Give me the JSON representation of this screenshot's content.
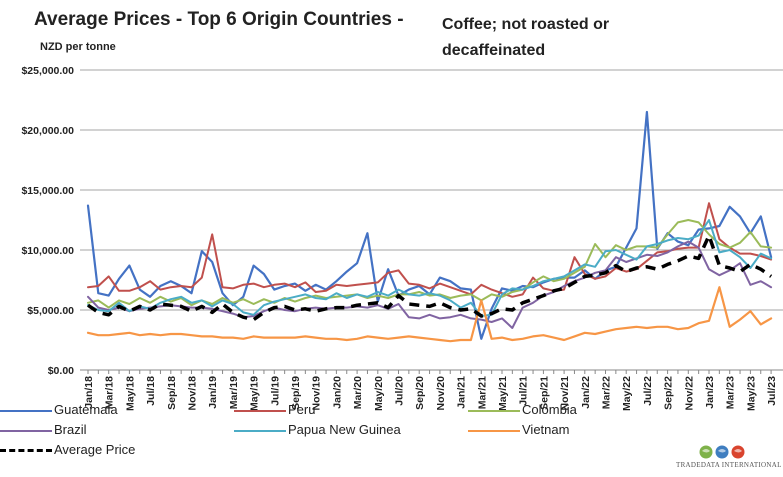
{
  "chart_data": {
    "type": "line",
    "title": "Average Prices - Top 6 Origin Countries -",
    "subtitle": "Coffee; not roasted or decaffeinated",
    "ylabel": "NZD per tonne",
    "ylim": [
      0,
      25000
    ],
    "yticks": [
      "$0.00",
      "$5,000.00",
      "$10,000.00",
      "$15,000.00",
      "$20,000.00",
      "$25,000.00"
    ],
    "ytick_values": [
      0,
      5000,
      10000,
      15000,
      20000,
      25000
    ],
    "categories": [
      "Jan/18",
      "Feb/18",
      "Mar/18",
      "Apr/18",
      "May/18",
      "Jun/18",
      "Jul/18",
      "Aug/18",
      "Sep/18",
      "Oct/18",
      "Nov/18",
      "Dec/18",
      "Jan/19",
      "Feb/19",
      "Mar/19",
      "Apr/19",
      "May/19",
      "Jun/19",
      "Jul/19",
      "Aug/19",
      "Sep/19",
      "Oct/19",
      "Nov/19",
      "Dec/19",
      "Jan/20",
      "Feb/20",
      "Mar/20",
      "Apr/20",
      "May/20",
      "Jun/20",
      "Jul/20",
      "Aug/20",
      "Sep/20",
      "Oct/20",
      "Nov/20",
      "Dec/20",
      "Jan/21",
      "Feb/21",
      "Mar/21",
      "Apr/21",
      "May/21",
      "Jun/21",
      "Jul/21",
      "Aug/21",
      "Sep/21",
      "Oct/21",
      "Nov/21",
      "Dec/21",
      "Jan/22",
      "Feb/22",
      "Mar/22",
      "Apr/22",
      "May/22",
      "Jun/22",
      "Jul/22",
      "Aug/22",
      "Sep/22",
      "Oct/22",
      "Nov/22",
      "Dec/22",
      "Jan/23",
      "Feb/23",
      "Mar/23",
      "Apr/23",
      "May/23",
      "Jun/23",
      "Jul/23"
    ],
    "tick_labels": [
      "Jan/18",
      "Mar/18",
      "May/18",
      "Jul/18",
      "Sep/18",
      "Nov/18",
      "Jan/19",
      "Mar/19",
      "May/19",
      "Jul/19",
      "Sep/19",
      "Nov/19",
      "Jan/20",
      "Mar/20",
      "May/20",
      "Jul/20",
      "Sep/20",
      "Nov/20",
      "Jan/21",
      "Mar/21",
      "May/21",
      "Jul/21",
      "Sep/21",
      "Nov/21",
      "Jan/22",
      "Mar/22",
      "May/22",
      "Jul/22",
      "Sep/22",
      "Nov/22",
      "Jan/23",
      "Mar/23",
      "May/23",
      "Jul/23"
    ],
    "grid": true,
    "legend_position": "bottom",
    "series": [
      {
        "name": "Guatemala",
        "color": "#4472c4",
        "width": 2.2,
        "dash": "",
        "values": [
          13700,
          6400,
          6200,
          7600,
          8700,
          6700,
          6100,
          7000,
          7400,
          7000,
          6400,
          9900,
          9000,
          6400,
          5400,
          6100,
          8700,
          8000,
          6700,
          7000,
          7200,
          6600,
          7100,
          6700,
          7400,
          8200,
          8900,
          11400,
          5700,
          8400,
          6200,
          6700,
          7000,
          6300,
          7700,
          7400,
          6800,
          6700,
          2600,
          5100,
          6800,
          6600,
          7000,
          6900,
          7300,
          7600,
          7700,
          7700,
          8300,
          7600,
          8300,
          8600,
          10200,
          11800,
          21500,
          10100,
          11400,
          10700,
          10400,
          11700,
          11800,
          12000,
          13600,
          12800,
          11400,
          12800,
          9400
        ]
      },
      {
        "name": "Peru",
        "color": "#c0504d",
        "width": 2,
        "dash": "",
        "values": [
          6900,
          7000,
          7800,
          6600,
          6600,
          6900,
          7400,
          6700,
          6900,
          7000,
          6900,
          7700,
          11300,
          6900,
          6800,
          7100,
          7200,
          6900,
          7100,
          7200,
          6900,
          7300,
          6500,
          6600,
          7100,
          7000,
          7100,
          7200,
          7300,
          8100,
          8300,
          7200,
          7100,
          6800,
          7200,
          6900,
          6600,
          6300,
          7100,
          6700,
          6400,
          6100,
          6300,
          7700,
          6800,
          6600,
          6700,
          9400,
          8000,
          7600,
          7800,
          8500,
          8200,
          8400,
          9100,
          9800,
          9900,
          10100,
          10200,
          10200,
          13900,
          10900,
          10200,
          9700,
          9700,
          9500,
          9200
        ]
      },
      {
        "name": "Colombia",
        "color": "#9bbb59",
        "width": 2,
        "dash": "",
        "values": [
          5600,
          5800,
          5200,
          5800,
          5500,
          6000,
          5600,
          6100,
          5700,
          6000,
          5400,
          5800,
          5500,
          6000,
          5600,
          5900,
          5500,
          5900,
          5600,
          6000,
          5700,
          6000,
          6200,
          6000,
          6100,
          6200,
          6300,
          6000,
          6200,
          6000,
          6300,
          6300,
          6500,
          6200,
          6300,
          6000,
          6200,
          6300,
          5800,
          6300,
          6100,
          6500,
          6700,
          7300,
          7800,
          7400,
          7600,
          8100,
          8600,
          10500,
          9400,
          10400,
          10000,
          10300,
          10300,
          10200,
          11300,
          12300,
          12500,
          12300,
          11300,
          10500,
          10200,
          10600,
          11500,
          10300,
          10200
        ]
      },
      {
        "name": "Brazil",
        "color": "#8064a2",
        "width": 2,
        "dash": "",
        "values": [
          6100,
          5200,
          5000,
          5200,
          4900,
          5100,
          5200,
          5300,
          5400,
          5300,
          5200,
          5200,
          5100,
          4900,
          4700,
          4400,
          4500,
          4900,
          5200,
          5000,
          4900,
          5100,
          5200,
          5100,
          5200,
          5200,
          5300,
          5200,
          5400,
          5100,
          5500,
          4400,
          4300,
          4600,
          4300,
          4400,
          4600,
          4300,
          4200,
          4000,
          4300,
          3500,
          5200,
          5600,
          6200,
          6500,
          7000,
          7400,
          7700,
          8100,
          8300,
          9400,
          9000,
          9300,
          9600,
          9500,
          9800,
          10300,
          10700,
          10200,
          8400,
          7900,
          8300,
          8900,
          7100,
          7400,
          6900
        ]
      },
      {
        "name": "Papua New Guinea",
        "color": "#4bacc6",
        "width": 2,
        "dash": "",
        "values": [
          5400,
          5000,
          4900,
          5600,
          4900,
          5300,
          5100,
          5600,
          5900,
          6100,
          5600,
          5800,
          5300,
          5800,
          5500,
          4800,
          4600,
          5400,
          5700,
          5900,
          6100,
          6300,
          6000,
          5900,
          6400,
          6000,
          6300,
          6100,
          6500,
          6200,
          6700,
          6300,
          6200,
          6400,
          6200,
          5800,
          5200,
          5600,
          4500,
          4600,
          6300,
          6800,
          6700,
          7000,
          7400,
          7600,
          7800,
          8300,
          8800,
          8600,
          9900,
          10000,
          9600,
          9200,
          10300,
          10500,
          10800,
          11000,
          10900,
          11200,
          12500,
          9800,
          10000,
          9400,
          8500,
          9700,
          9300
        ]
      },
      {
        "name": "Vietnam",
        "color": "#f79646",
        "width": 2.2,
        "dash": "",
        "values": [
          3100,
          2900,
          2900,
          3000,
          3100,
          2900,
          3000,
          2900,
          3000,
          3000,
          2900,
          2800,
          2800,
          2700,
          2700,
          2600,
          2800,
          2700,
          2700,
          2700,
          2700,
          2800,
          2700,
          2600,
          2600,
          2500,
          2600,
          2800,
          2700,
          2600,
          2700,
          2800,
          2700,
          2600,
          2500,
          2400,
          2500,
          2500,
          5800,
          2600,
          2700,
          2500,
          2600,
          2800,
          2900,
          2700,
          2500,
          2800,
          3100,
          3000,
          3200,
          3400,
          3500,
          3600,
          3500,
          3600,
          3600,
          3400,
          3500,
          3900,
          4100,
          6900,
          3600,
          4200,
          4900,
          3800,
          4300
        ]
      },
      {
        "name": "Average Price",
        "color": "#000000",
        "width": 3.5,
        "dash": "10,7",
        "values": [
          5400,
          4800,
          4600,
          5300,
          4900,
          5300,
          5000,
          5500,
          5400,
          5300,
          4900,
          5300,
          4800,
          5500,
          4800,
          4400,
          4200,
          4800,
          5200,
          5300,
          5000,
          5100,
          4900,
          5100,
          5200,
          5200,
          5400,
          5500,
          5600,
          5200,
          6200,
          5500,
          5400,
          5300,
          5600,
          5200,
          5000,
          5100,
          4500,
          4700,
          5100,
          5000,
          5600,
          5900,
          6200,
          6600,
          6800,
          7300,
          7800,
          7900,
          8100,
          8700,
          8200,
          8500,
          8600,
          8400,
          8800,
          9100,
          9500,
          9300,
          11200,
          8700,
          8500,
          8200,
          8800,
          8400,
          7800
        ]
      }
    ]
  },
  "logo": {
    "name": "TradeData International",
    "text": "TRADEDATA INTERNATIONAL"
  }
}
